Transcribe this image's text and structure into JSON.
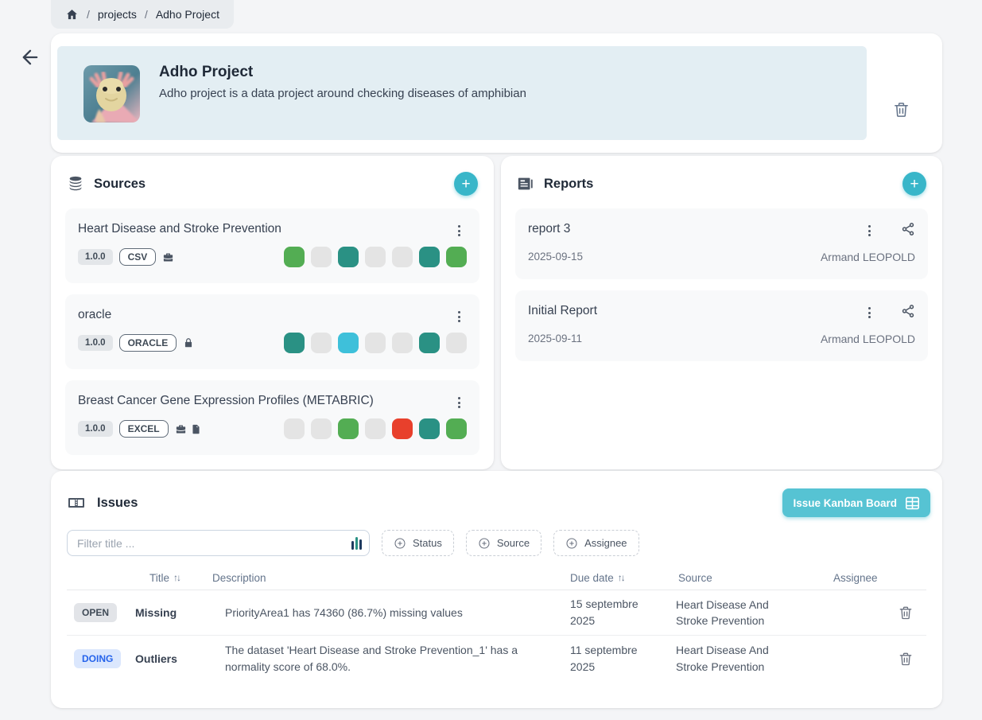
{
  "icons": {
    "plus": "+",
    "sort": "↑↓",
    "breadcrumb_sep": "/"
  },
  "breadcrumb": {
    "items": [
      "projects",
      "Adho Project"
    ]
  },
  "header": {
    "title": "Adho Project",
    "description": "Adho project is a data project around checking diseases of amphibian"
  },
  "sources": {
    "title": "Sources",
    "cards": [
      {
        "name": "Heart Disease and Stroke Prevention",
        "version": "1.0.0",
        "type": "CSV",
        "icons": [
          "briefcase-icon"
        ],
        "squares": [
          "green",
          "gray",
          "teal",
          "gray",
          "gray",
          "teal",
          "green"
        ]
      },
      {
        "name": "oracle",
        "version": "1.0.0",
        "type": "ORACLE",
        "icons": [
          "lock-icon"
        ],
        "squares": [
          "teal",
          "gray",
          "cyan",
          "gray",
          "gray",
          "teal",
          "gray"
        ]
      },
      {
        "name": "Breast Cancer Gene Expression Profiles (METABRIC)",
        "version": "1.0.0",
        "type": "EXCEL",
        "icons": [
          "briefcase-icon",
          "file-icon"
        ],
        "squares": [
          "gray",
          "gray",
          "green",
          "gray",
          "red",
          "teal",
          "green"
        ]
      }
    ]
  },
  "reports": {
    "title": "Reports",
    "cards": [
      {
        "name": "report 3",
        "date": "2025-09-15",
        "author": "Armand LEOPOLD"
      },
      {
        "name": "Initial Report",
        "date": "2025-09-11",
        "author": "Armand LEOPOLD"
      }
    ]
  },
  "issues": {
    "title": "Issues",
    "kanban_button": "Issue Kanban Board",
    "filter_placeholder": "Filter title ...",
    "filter_buttons": [
      "Status",
      "Source",
      "Assignee"
    ],
    "table": {
      "headers": {
        "title": "Title",
        "description": "Description",
        "due": "Due date",
        "source": "Source",
        "assignee": "Assignee"
      },
      "rows": [
        {
          "status": "OPEN",
          "status_class": "status-open",
          "title": "Missing",
          "description": "PriorityArea1 has 74360 (86.7%) missing values",
          "due_date": "15 septembre 2025",
          "source": "Heart Disease And Stroke Prevention"
        },
        {
          "status": "DOING",
          "status_class": "status-doing",
          "title": "Outliers",
          "description": "The dataset 'Heart Disease and Stroke Prevention_1' has a normality score of 68.0%.",
          "due_date": "11 septembre 2025",
          "source": "Heart Disease And Stroke Prevention"
        }
      ]
    }
  },
  "colors": {
    "accent_teal": "#38b6c9",
    "kanban_button": "#56c3d3",
    "square_green": "#53ad53",
    "square_teal": "#2a9184",
    "square_cyan": "#3ec0da",
    "square_red": "#e8402c",
    "square_gray": "#e4e4e4"
  }
}
